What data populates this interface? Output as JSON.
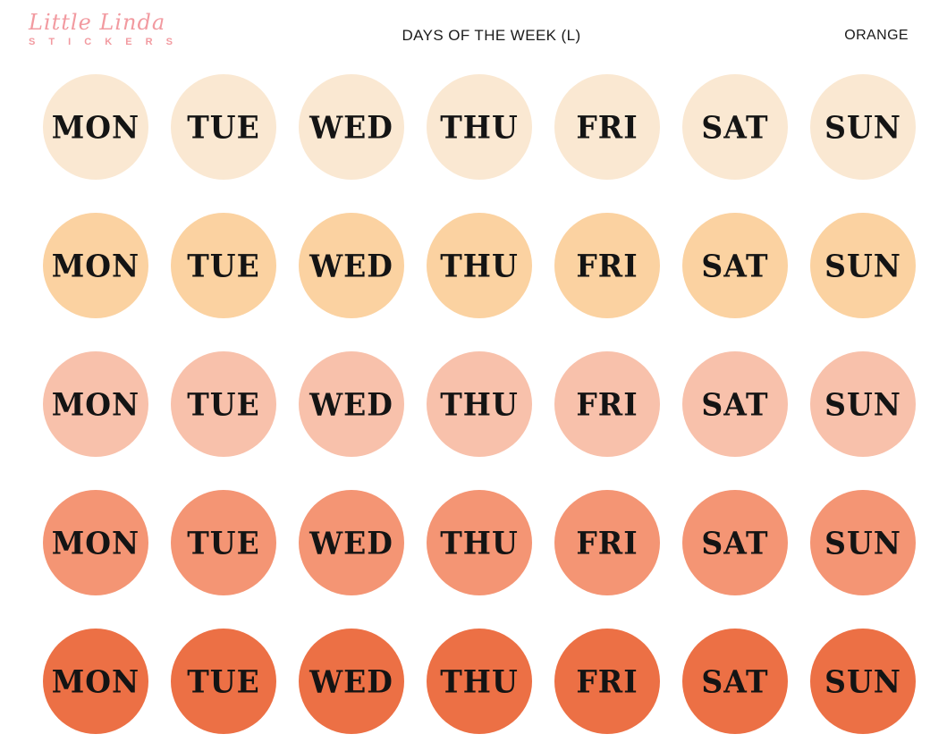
{
  "header": {
    "logo_script": "Little Linda",
    "logo_sub": "S T I C K E R S",
    "title": "DAYS OF THE WEEK (L)",
    "variant": "ORANGE"
  },
  "days": [
    "MON",
    "TUE",
    "WED",
    "THU",
    "FRI",
    "SAT",
    "SUN"
  ],
  "sticker_rows": [
    {
      "shade_name": "cream",
      "color": "#fae8d2"
    },
    {
      "shade_name": "apricot",
      "color": "#fbd2a1"
    },
    {
      "shade_name": "salmon",
      "color": "#f8c1ab"
    },
    {
      "shade_name": "coral",
      "color": "#f49574"
    },
    {
      "shade_name": "orange",
      "color": "#ec7045"
    }
  ],
  "colors": {
    "background": "#ffffff",
    "logo_pink": "#f29aa0",
    "label_text": "#141414",
    "header_text": "#1a1a1a"
  }
}
